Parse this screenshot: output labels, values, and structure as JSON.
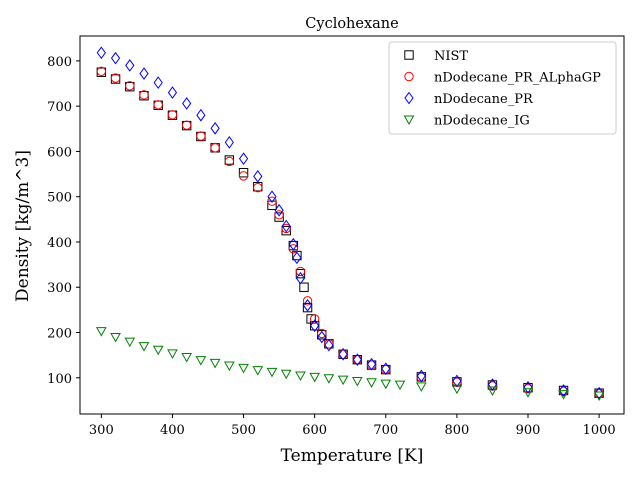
{
  "chart_data": {
    "type": "scatter",
    "title": "Cyclohexane",
    "xlabel": "Temperature [K]",
    "ylabel": "Density [kg/m^3]",
    "xlim": [
      270,
      1035
    ],
    "ylim": [
      20,
      855
    ],
    "xticks": [
      300,
      400,
      500,
      600,
      700,
      800,
      900,
      1000
    ],
    "yticks": [
      100,
      200,
      300,
      400,
      500,
      600,
      700,
      800
    ],
    "grid": false,
    "legend_position": "top-right",
    "series": [
      {
        "name": "NIST",
        "marker": "square",
        "color": "#000000",
        "x": [
          300,
          320,
          340,
          360,
          380,
          400,
          420,
          440,
          460,
          480,
          500,
          520,
          540,
          550,
          560,
          570,
          575,
          580,
          585,
          590,
          595,
          600,
          610,
          620,
          640,
          660,
          680,
          700,
          750,
          800,
          850,
          900,
          950,
          1000
        ],
        "y": [
          775,
          760,
          743,
          723,
          702,
          680,
          657,
          633,
          608,
          581,
          553,
          522,
          481,
          455,
          425,
          392,
          370,
          330,
          300,
          255,
          230,
          215,
          195,
          175,
          152,
          140,
          128,
          118,
          102,
          91,
          84,
          78,
          72,
          66
        ]
      },
      {
        "name": "nDodecane_PR_ALphaGP",
        "marker": "circle",
        "color": "#ff0000",
        "x": [
          300,
          320,
          340,
          360,
          380,
          400,
          420,
          440,
          460,
          480,
          500,
          520,
          540,
          550,
          560,
          570,
          580,
          590,
          600,
          610,
          620,
          640,
          660,
          680,
          700,
          750,
          800,
          850,
          900,
          950,
          1000
        ],
        "y": [
          777,
          762,
          745,
          725,
          703,
          681,
          658,
          634,
          608,
          578,
          546,
          520,
          490,
          460,
          430,
          385,
          335,
          270,
          230,
          198,
          175,
          152,
          140,
          128,
          118,
          101,
          90,
          82,
          76,
          70,
          65
        ]
      },
      {
        "name": "nDodecane_PR",
        "marker": "diamond",
        "color": "#0000ff",
        "x": [
          300,
          320,
          340,
          360,
          380,
          400,
          420,
          440,
          460,
          480,
          500,
          520,
          540,
          550,
          560,
          570,
          575,
          580,
          590,
          600,
          610,
          620,
          640,
          660,
          680,
          700,
          750,
          800,
          850,
          900,
          950,
          1000
        ],
        "y": [
          818,
          806,
          790,
          772,
          752,
          730,
          706,
          680,
          651,
          620,
          584,
          545,
          500,
          470,
          435,
          395,
          365,
          320,
          260,
          215,
          190,
          172,
          152,
          140,
          130,
          120,
          104,
          93,
          85,
          79,
          72,
          66
        ]
      },
      {
        "name": "nDodecane_IG",
        "marker": "triangle-down",
        "color": "#008000",
        "x": [
          300,
          320,
          340,
          360,
          380,
          400,
          420,
          440,
          460,
          480,
          500,
          520,
          540,
          560,
          580,
          600,
          620,
          640,
          660,
          680,
          700,
          720,
          750,
          800,
          850,
          900,
          950,
          1000
        ],
        "y": [
          203,
          190,
          180,
          170,
          162,
          154,
          146,
          139,
          133,
          127,
          122,
          117,
          113,
          109,
          105,
          102,
          99,
          96,
          93,
          90,
          87,
          85,
          81,
          76,
          72,
          68,
          64,
          61
        ]
      }
    ]
  }
}
